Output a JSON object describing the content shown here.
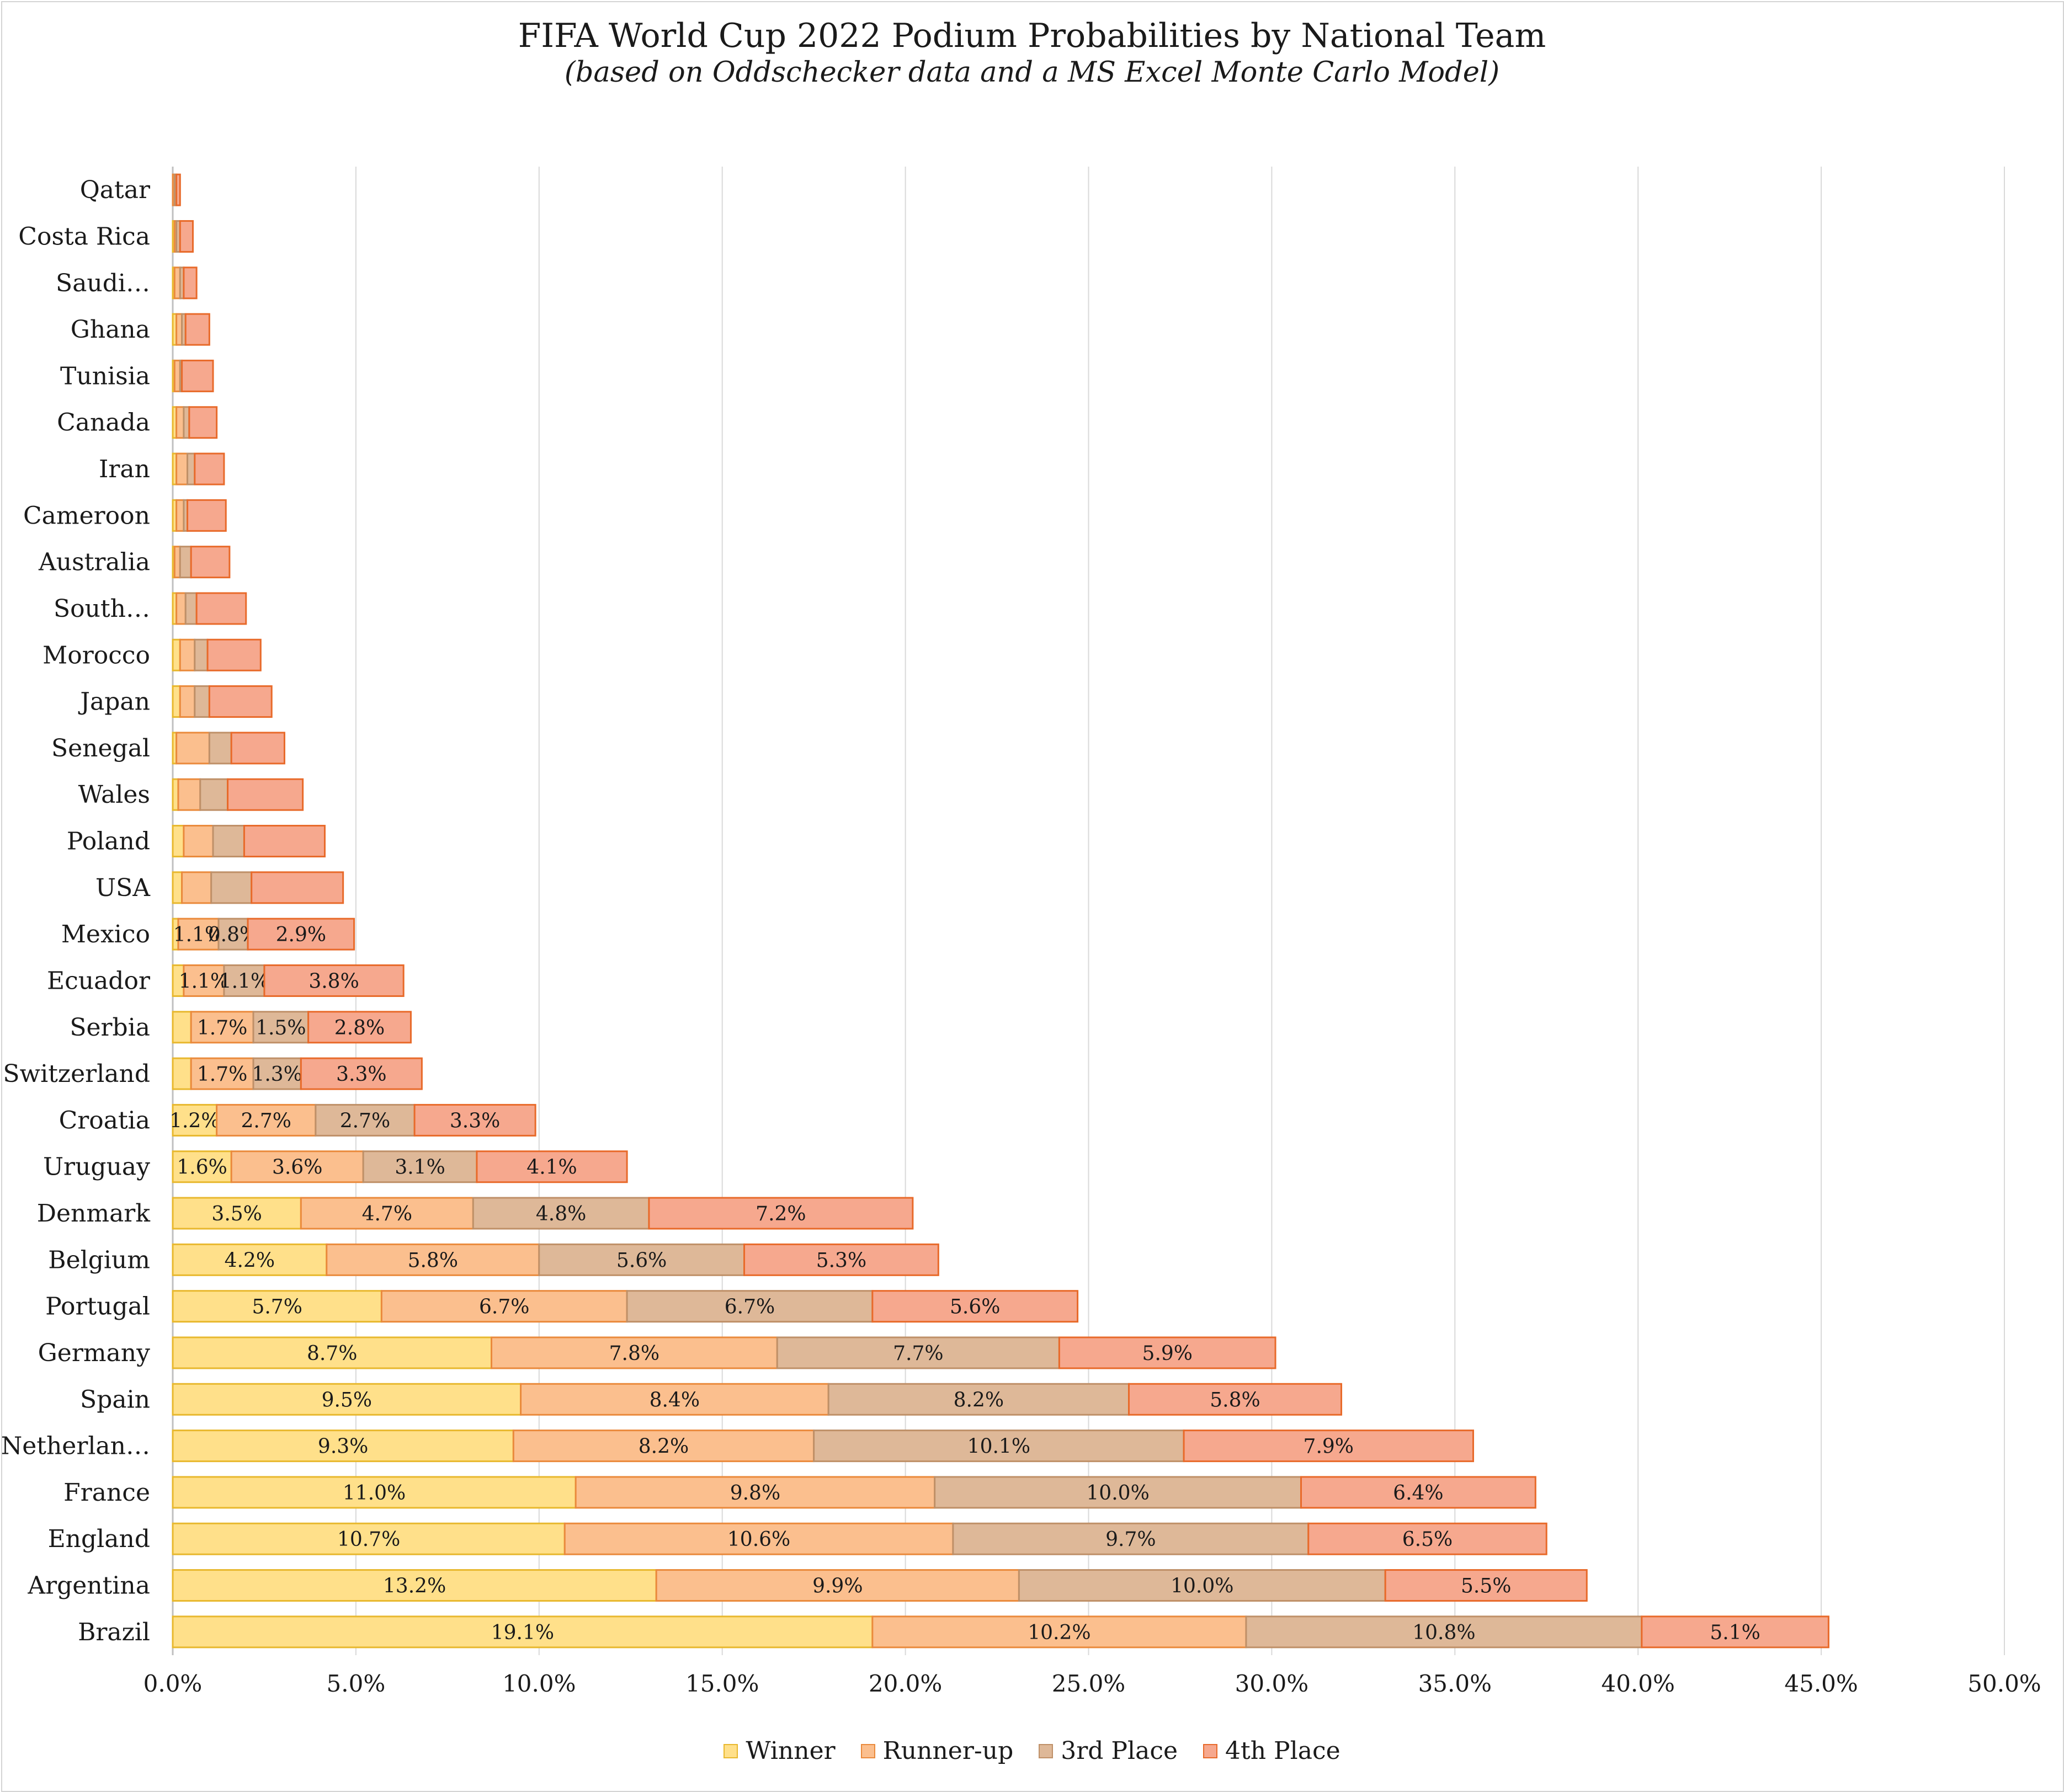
{
  "chart_data": {
    "type": "bar",
    "orientation": "horizontal",
    "stacked": true,
    "title": "FIFA World Cup 2022 Podium Probabilities by National Team",
    "subtitle": "(based on Oddschecker data and a MS Excel Monte Carlo Model)",
    "xlim": [
      0,
      0.5
    ],
    "x_ticks": [
      "0.0%",
      "5.0%",
      "10.0%",
      "15.0%",
      "20.0%",
      "25.0%",
      "30.0%",
      "35.0%",
      "40.0%",
      "45.0%",
      "50.0%"
    ],
    "grid": "vertical",
    "legend_position": "bottom",
    "categories": [
      "Qatar",
      "Costa Rica",
      "Saudi…",
      "Ghana",
      "Tunisia",
      "Canada",
      "Iran",
      "Cameroon",
      "Australia",
      "South…",
      "Morocco",
      "Japan",
      "Senegal",
      "Wales",
      "Poland",
      "USA",
      "Mexico",
      "Ecuador",
      "Serbia",
      "Switzerland",
      "Croatia",
      "Uruguay",
      "Denmark",
      "Belgium",
      "Portugal",
      "Germany",
      "Spain",
      "Netherlan…",
      "France",
      "England",
      "Argentina",
      "Brazil"
    ],
    "series": [
      {
        "name": "Winner",
        "color": "#ffe08a",
        "stroke": "#e8b82e",
        "values": [
          0.0,
          0.0005,
          0.0005,
          0.001,
          0.0005,
          0.001,
          0.001,
          0.001,
          0.0005,
          0.001,
          0.002,
          0.002,
          0.001,
          0.0015,
          0.003,
          0.0025,
          0.0015,
          0.003,
          0.005,
          0.005,
          0.012,
          0.016,
          0.035,
          0.042,
          0.057,
          0.087,
          0.095,
          0.093,
          0.11,
          0.107,
          0.132,
          0.191
        ],
        "labels": [
          "",
          "",
          "",
          "",
          "",
          "",
          "",
          "",
          "",
          "",
          "",
          "",
          "",
          "",
          "",
          "",
          "",
          "",
          "",
          "",
          "1.2%",
          "1.6%",
          "3.5%",
          "4.2%",
          "5.7%",
          "8.7%",
          "9.5%",
          "9.3%",
          "11.0%",
          "10.7%",
          "13.2%",
          "19.1%"
        ]
      },
      {
        "name": "Runner-up",
        "color": "#fbbf8e",
        "stroke": "#ea8a3c",
        "values": [
          0.0005,
          0.0005,
          0.0015,
          0.0015,
          0.0015,
          0.002,
          0.003,
          0.002,
          0.0015,
          0.0025,
          0.004,
          0.004,
          0.009,
          0.006,
          0.008,
          0.008,
          0.011,
          0.011,
          0.017,
          0.017,
          0.027,
          0.036,
          0.047,
          0.058,
          0.067,
          0.078,
          0.084,
          0.082,
          0.098,
          0.106,
          0.099,
          0.102
        ],
        "labels": [
          "",
          "",
          "",
          "",
          "",
          "",
          "",
          "",
          "",
          "",
          "",
          "",
          "",
          "",
          "",
          "",
          "1.1%",
          "1.1%",
          "1.7%",
          "1.7%",
          "2.7%",
          "3.6%",
          "4.7%",
          "5.8%",
          "6.7%",
          "7.8%",
          "8.4%",
          "8.2%",
          "9.8%",
          "10.6%",
          "9.9%",
          "10.2%"
        ]
      },
      {
        "name": "3rd Place",
        "color": "#deb898",
        "stroke": "#bf9068",
        "values": [
          0.0005,
          0.001,
          0.001,
          0.001,
          0.0005,
          0.0015,
          0.002,
          0.001,
          0.003,
          0.003,
          0.0035,
          0.004,
          0.006,
          0.0075,
          0.0085,
          0.011,
          0.008,
          0.011,
          0.015,
          0.013,
          0.027,
          0.031,
          0.048,
          0.056,
          0.067,
          0.077,
          0.082,
          0.101,
          0.1,
          0.097,
          0.1,
          0.108
        ],
        "labels": [
          "",
          "",
          "",
          "",
          "",
          "",
          "",
          "",
          "",
          "",
          "",
          "",
          "",
          "",
          "",
          "",
          "0.8%",
          "1.1%",
          "1.5%",
          "1.3%",
          "2.7%",
          "3.1%",
          "4.8%",
          "5.6%",
          "6.7%",
          "7.7%",
          "8.2%",
          "10.1%",
          "10.0%",
          "9.7%",
          "10.0%",
          "10.8%"
        ]
      },
      {
        "name": "4th Place",
        "color": "#f6a88e",
        "stroke": "#e86a2a",
        "values": [
          0.001,
          0.0035,
          0.0035,
          0.0065,
          0.0085,
          0.0075,
          0.008,
          0.0105,
          0.0105,
          0.0135,
          0.0145,
          0.017,
          0.0145,
          0.0205,
          0.022,
          0.025,
          0.029,
          0.038,
          0.028,
          0.033,
          0.033,
          0.041,
          0.072,
          0.053,
          0.056,
          0.059,
          0.058,
          0.079,
          0.064,
          0.065,
          0.055,
          0.051
        ],
        "labels": [
          "",
          "",
          "",
          "",
          "",
          "",
          "",
          "",
          "",
          "",
          "",
          "",
          "",
          "",
          "",
          "",
          "2.9%",
          "3.8%",
          "2.8%",
          "3.3%",
          "3.3%",
          "4.1%",
          "7.2%",
          "5.3%",
          "5.6%",
          "5.9%",
          "5.8%",
          "7.9%",
          "6.4%",
          "6.5%",
          "5.5%",
          "5.1%"
        ]
      }
    ]
  }
}
